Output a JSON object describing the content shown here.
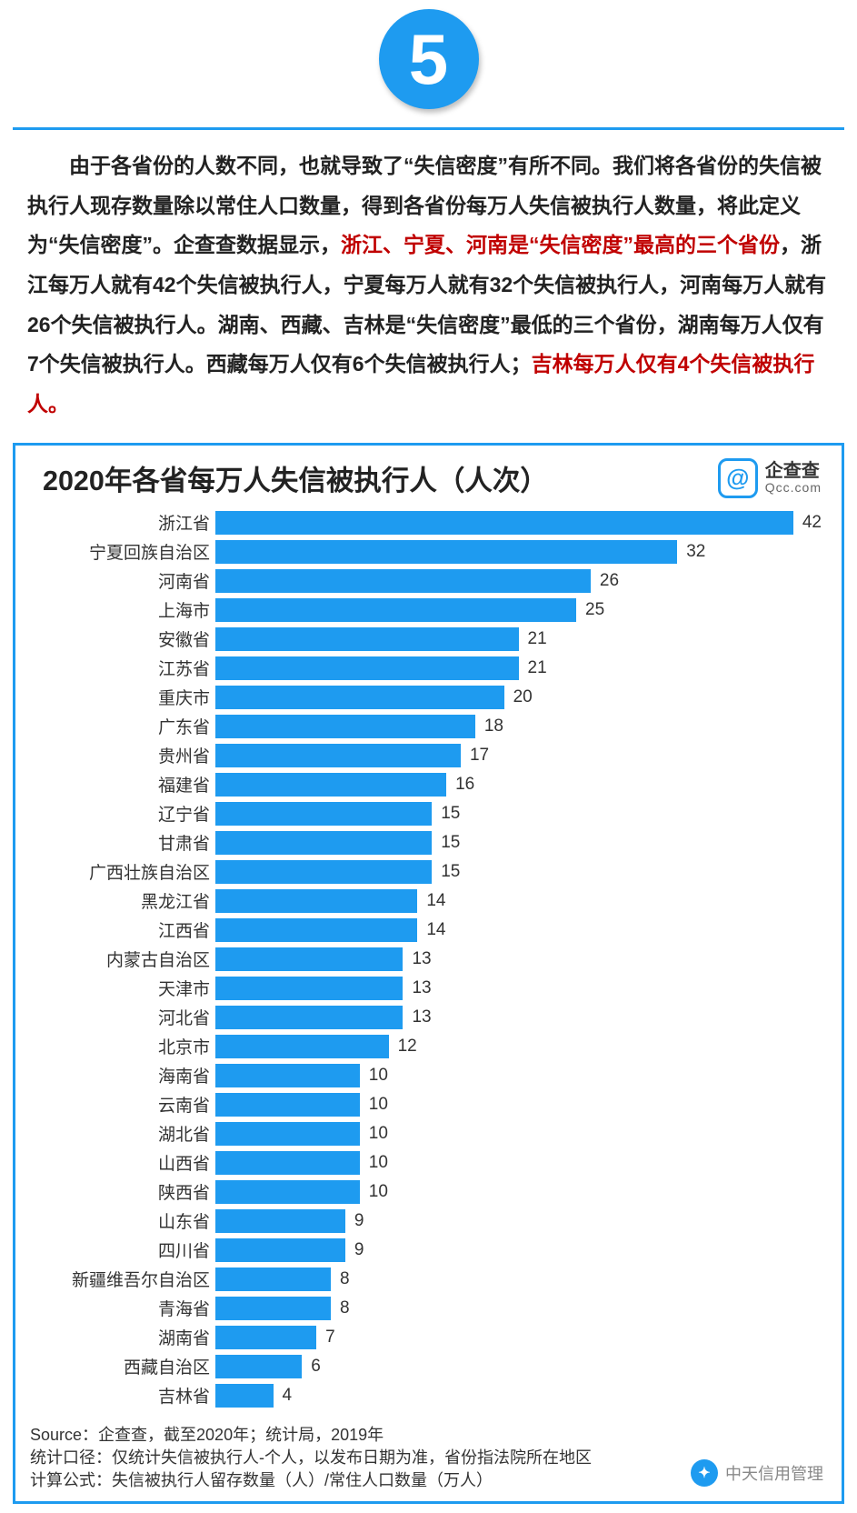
{
  "badge_number": "5",
  "paragraph": {
    "seg1": "由于各省份的人数不同，也就导致了“失信密度”有所不同。我们将各省份的失信被执行人现存数量除以常住人口数量，得到各省份每万人失信被执行人数量，将此定义为“失信密度”。企查查数据显示，",
    "red1": "浙江、宁夏、河南是“失信密度”最高的三个省份",
    "seg2": "，浙江每万人就有42个失信被执行人，宁夏每万人就有32个失信被执行人，河南每万人就有26个失信被执行人。湖南、西藏、吉林是“失信密度”最低的三个省份，湖南每万人仅有7个失信被执行人。西藏每万人仅有6个失信被执行人；",
    "red2": "吉林每万人仅有4个失信被执行人。"
  },
  "chart": {
    "type": "bar",
    "title": "2020年各省每万人失信被执行人（人次）",
    "brand_name": "企查查",
    "brand_site": "Qcc.com",
    "bar_color": "#1e9bf0",
    "bg_color": "#ffffff",
    "label_fontsize": 19,
    "value_fontsize": 19,
    "title_fontsize": 30.5,
    "xmax": 42,
    "bars": [
      {
        "label": "浙江省",
        "value": 42
      },
      {
        "label": "宁夏回族自治区",
        "value": 32
      },
      {
        "label": "河南省",
        "value": 26
      },
      {
        "label": "上海市",
        "value": 25
      },
      {
        "label": "安徽省",
        "value": 21
      },
      {
        "label": "江苏省",
        "value": 21
      },
      {
        "label": "重庆市",
        "value": 20
      },
      {
        "label": "广东省",
        "value": 18
      },
      {
        "label": "贵州省",
        "value": 17
      },
      {
        "label": "福建省",
        "value": 16
      },
      {
        "label": "辽宁省",
        "value": 15
      },
      {
        "label": "甘肃省",
        "value": 15
      },
      {
        "label": "广西壮族自治区",
        "value": 15
      },
      {
        "label": "黑龙江省",
        "value": 14
      },
      {
        "label": "江西省",
        "value": 14
      },
      {
        "label": "内蒙古自治区",
        "value": 13
      },
      {
        "label": "天津市",
        "value": 13
      },
      {
        "label": "河北省",
        "value": 13
      },
      {
        "label": "北京市",
        "value": 12
      },
      {
        "label": "海南省",
        "value": 10
      },
      {
        "label": "云南省",
        "value": 10
      },
      {
        "label": "湖北省",
        "value": 10
      },
      {
        "label": "山西省",
        "value": 10
      },
      {
        "label": "陕西省",
        "value": 10
      },
      {
        "label": "山东省",
        "value": 9
      },
      {
        "label": "四川省",
        "value": 9
      },
      {
        "label": "新疆维吾尔自治区",
        "value": 8
      },
      {
        "label": "青海省",
        "value": 8
      },
      {
        "label": "湖南省",
        "value": 7
      },
      {
        "label": "西藏自治区",
        "value": 6
      },
      {
        "label": "吉林省",
        "value": 4
      }
    ],
    "source_line": "Source：企查查，截至2020年；统计局，2019年",
    "scope_line": "统计口径：仅统计失信被执行人-个人，以发布日期为准，省份指法院所在地区",
    "formula_line": "计算公式：失信被执行人留存数量（人）/常住人口数量（万人）"
  },
  "footer_badge": "中天信用管理",
  "colors": {
    "accent": "#1e9bf0",
    "text": "#333333",
    "red": "#c00000"
  }
}
